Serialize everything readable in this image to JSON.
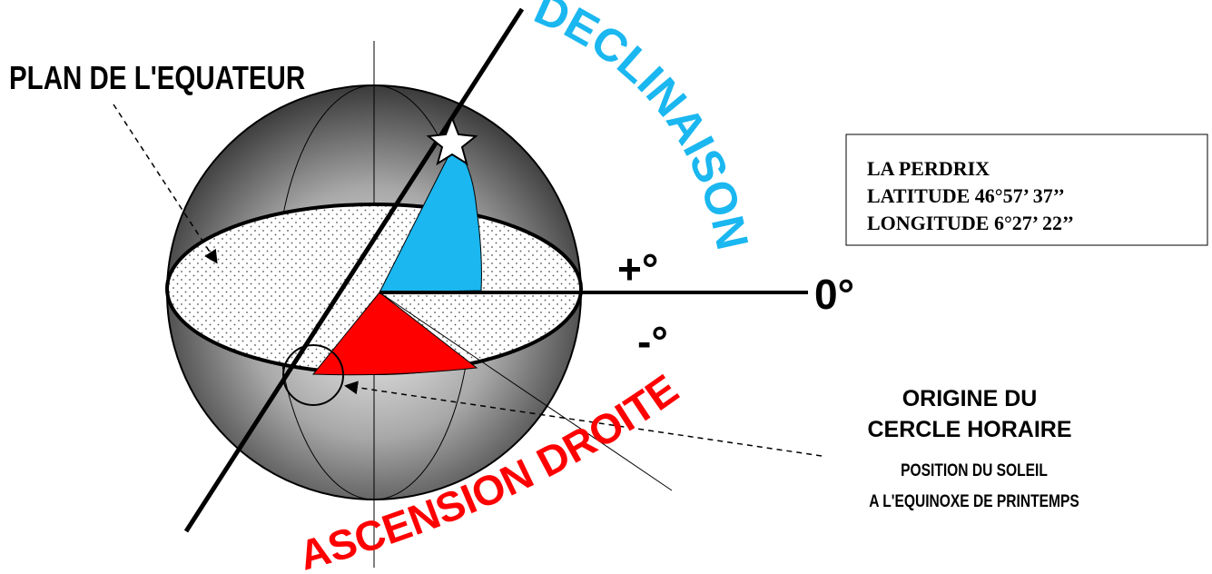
{
  "labels": {
    "equator_plane": "PLAN DE L'EQUATEUR",
    "declination": "DECLINAISON",
    "right_ascension": "ASCENSION DROITE",
    "plus": "+°",
    "zero": "0°",
    "minus": "-°"
  },
  "info_box": {
    "lines": [
      "LA PERDRIX",
      "LATITUDE 46°57’ 37’’",
      "LONGITUDE 6°27’ 22’’"
    ]
  },
  "origin_note": {
    "title": [
      "ORIGINE DU",
      "CERCLE HORAIRE"
    ],
    "subtitle": [
      "POSITION DU SOLEIL",
      "A L'EQUINOXE DE PRINTEMPS"
    ]
  }
}
